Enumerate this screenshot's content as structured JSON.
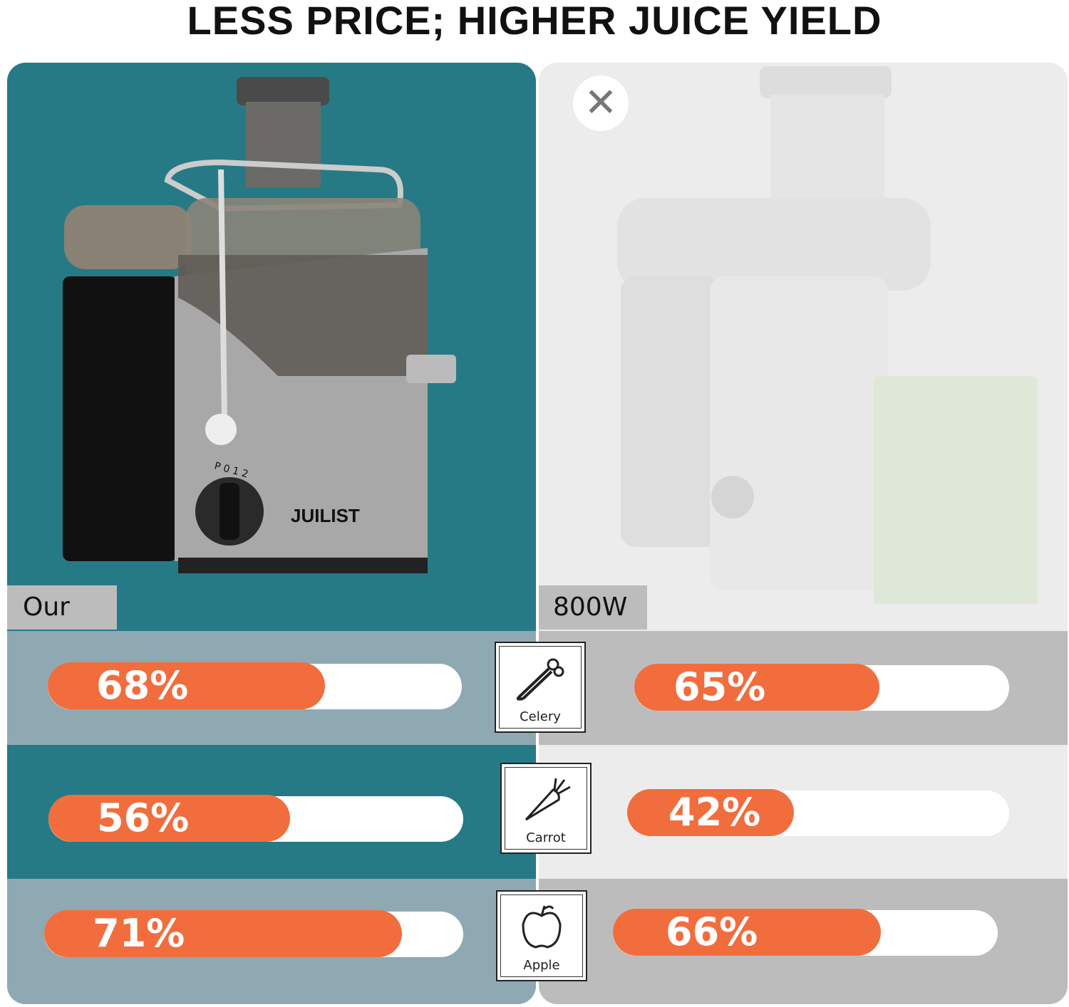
{
  "title": "LESS PRICE; HIGHER JUICE YIELD",
  "left": {
    "label": "Our",
    "brand": "JUILIST",
    "dial": "P 0 1 2",
    "theme_color": "#267a85"
  },
  "right": {
    "label": "800W",
    "close_icon": "x-icon"
  },
  "accent_color": "#f26d3d",
  "rows": [
    {
      "fruit": "Celery",
      "icon": "celery-icon",
      "ours": "68%",
      "ours_value": 68,
      "theirs": "65%",
      "theirs_value": 65
    },
    {
      "fruit": "Carrot",
      "icon": "carrot-icon",
      "ours": "56%",
      "ours_value": 56,
      "theirs": "42%",
      "theirs_value": 42
    },
    {
      "fruit": "Apple",
      "icon": "apple-icon",
      "ours": "71%",
      "ours_value": 71,
      "theirs": "66%",
      "theirs_value": 66
    }
  ]
}
